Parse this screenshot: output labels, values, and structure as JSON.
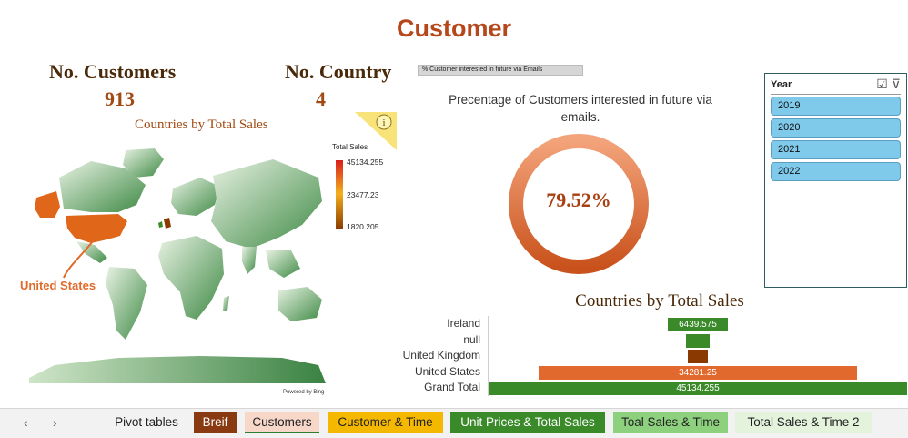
{
  "page_title": "Customer",
  "kpis": {
    "customers_label": "No. Customers",
    "customers_value": "913",
    "country_label": "No. Country",
    "country_value": "4"
  },
  "map": {
    "title": "Countries by Total Sales",
    "highlight_label": "United States",
    "powered_by": "Powered by Bing",
    "legend": {
      "title": "Total Sales",
      "max": "45134.255",
      "mid": "23477.23",
      "min": "1820.205"
    },
    "info_icon": "info-icon"
  },
  "donut": {
    "tag": "% Customer interested in future via Emails",
    "title": "Precentage of Customers interested in future via emails.",
    "value_label": "79.52%",
    "value": 79.52
  },
  "slicer": {
    "title": "Year",
    "icons": [
      "multi-select-icon",
      "clear-filter-icon"
    ],
    "items": [
      "2019",
      "2020",
      "2021",
      "2022"
    ]
  },
  "chart_data": {
    "type": "bar",
    "title": "Countries by Total Sales",
    "categories": [
      "Ireland",
      "null",
      "United Kingdom",
      "United States",
      "Grand Total"
    ],
    "values": [
      6439.575,
      2588.87,
      1820.205,
      34281.25,
      45134.255
    ],
    "data_labels": [
      "6439.575",
      "",
      "",
      "34281.25",
      "45134.255"
    ],
    "colors": [
      "#3a8a2a",
      "#3a8a2a",
      "#8a3a00",
      "#e2692d",
      "#3a8a2a"
    ],
    "xlim": [
      0,
      45134.255
    ]
  },
  "tabs": {
    "nav_prev": "‹",
    "nav_next": "›",
    "items": [
      {
        "label": "Pivot tables",
        "bg": "#f2f2f2",
        "color": "#222222"
      },
      {
        "label": "Breif",
        "bg": "#8a3a10",
        "color": "#ffffff"
      },
      {
        "label": "Customers",
        "bg": "#f6d7c8",
        "color": "#222222",
        "active": true
      },
      {
        "label": "Customer & Time",
        "bg": "#f5b800",
        "color": "#222222"
      },
      {
        "label": "Unit Prices & Total Sales",
        "bg": "#3a8a2a",
        "color": "#ffffff"
      },
      {
        "label": "Toal Sales & Time",
        "bg": "#8dd07e",
        "color": "#222222"
      },
      {
        "label": "Total Sales & Time 2",
        "bg": "#e3f3dc",
        "color": "#222222"
      }
    ]
  }
}
